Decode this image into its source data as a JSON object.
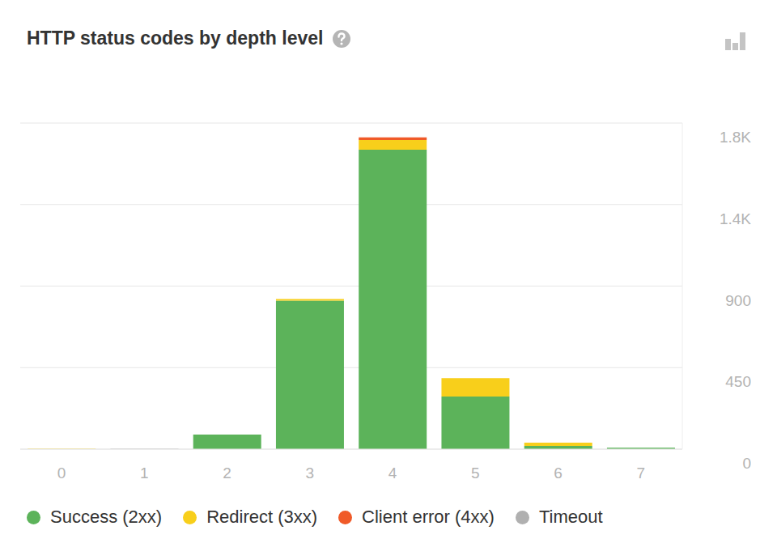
{
  "chart_data": {
    "type": "bar",
    "title": "HTTP status codes by depth level",
    "categories": [
      "0",
      "1",
      "2",
      "3",
      "4",
      "5",
      "6",
      "7"
    ],
    "series": [
      {
        "name": "Success (2xx)",
        "color": "#5cb35a",
        "values": [
          0,
          0,
          80,
          820,
          1653,
          290,
          18,
          8
        ]
      },
      {
        "name": "Redirect (3xx)",
        "color": "#f8cf1b",
        "values": [
          2,
          0,
          0,
          8,
          53,
          102,
          18,
          0
        ]
      },
      {
        "name": "Client error (4xx)",
        "color": "#f05a28",
        "values": [
          0,
          0,
          0,
          0,
          15,
          0,
          0,
          0
        ]
      },
      {
        "name": "Timeout",
        "color": "#b0b0b0",
        "values": [
          0,
          2,
          0,
          0,
          0,
          0,
          0,
          0
        ]
      }
    ],
    "ylim": [
      0,
      1800
    ],
    "yticks": [
      0,
      450,
      900,
      {
        "value": 1350,
        "label": "1.4K"
      },
      {
        "value": 1800,
        "label": "1.8K"
      }
    ],
    "stacked": true,
    "grid": true,
    "legend": "bottom"
  }
}
